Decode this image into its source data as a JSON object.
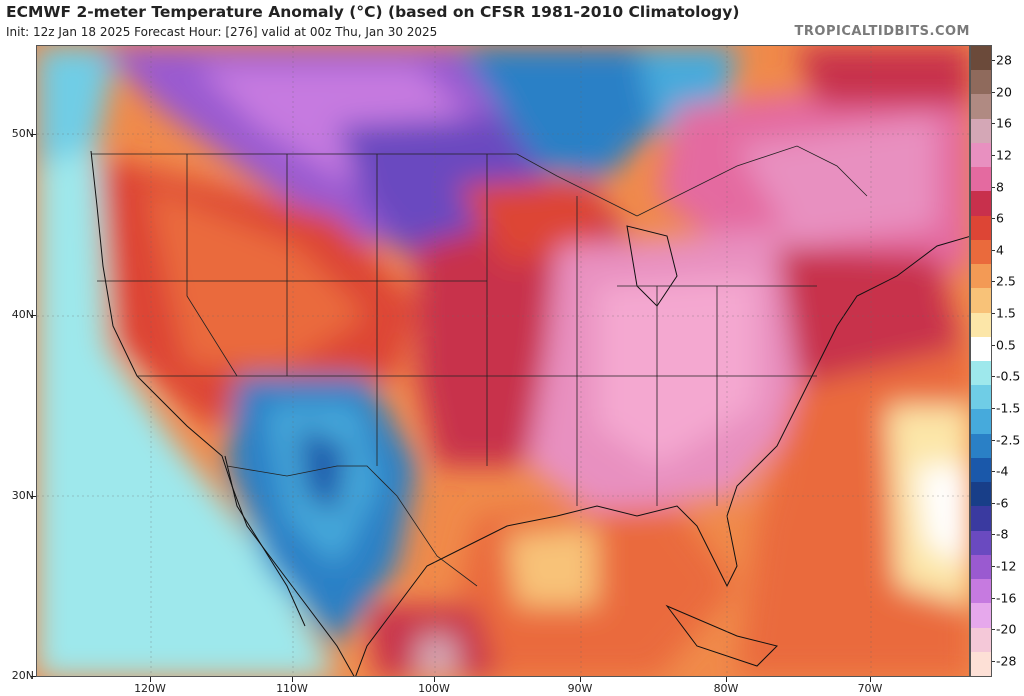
{
  "header": {
    "title": "ECMWF 2-meter Temperature Anomaly (°C) (based on CFSR 1981-2010 Climatology)",
    "subtitle": "Init: 12z Jan 18 2025   Forecast Hour: [276]   valid at 00z Thu, Jan 30 2025",
    "site": "TROPICALTIDBITS.COM"
  },
  "map": {
    "lat_labels": [
      "50N",
      "40N",
      "30N",
      "20N"
    ],
    "lon_labels": [
      "120W",
      "110W",
      "100W",
      "90W",
      "80W",
      "70W"
    ]
  },
  "colorbar": {
    "labels": [
      "28",
      "20",
      "16",
      "12",
      "8",
      "6",
      "4",
      "2.5",
      "1.5",
      "0.5",
      "-0.5",
      "-1.5",
      "-2.5",
      "-4",
      "-6",
      "-8",
      "-12",
      "-16",
      "-20",
      "-28"
    ],
    "colors": [
      "#6b4a3a",
      "#8f6a5c",
      "#b08a82",
      "#d4a7b6",
      "#e890c0",
      "#e46aa0",
      "#c8304c",
      "#dd4535",
      "#ea6a3c",
      "#f39a55",
      "#f8c278",
      "#fce6a8",
      "#ffffff",
      "#9ee8ec",
      "#6fcde6",
      "#46aadc",
      "#2a80c6",
      "#1a58aa",
      "#183e88",
      "#3a3aa0",
      "#6a4ac0",
      "#9a5ad0",
      "#c67ae0",
      "#e6a8ec",
      "#f4c8d8",
      "#fde0d6"
    ]
  },
  "colors": {
    "warm_anomaly": "#e46aa0",
    "cold_anomaly": "#1a58aa",
    "ocean_mild": "#f39a55"
  }
}
